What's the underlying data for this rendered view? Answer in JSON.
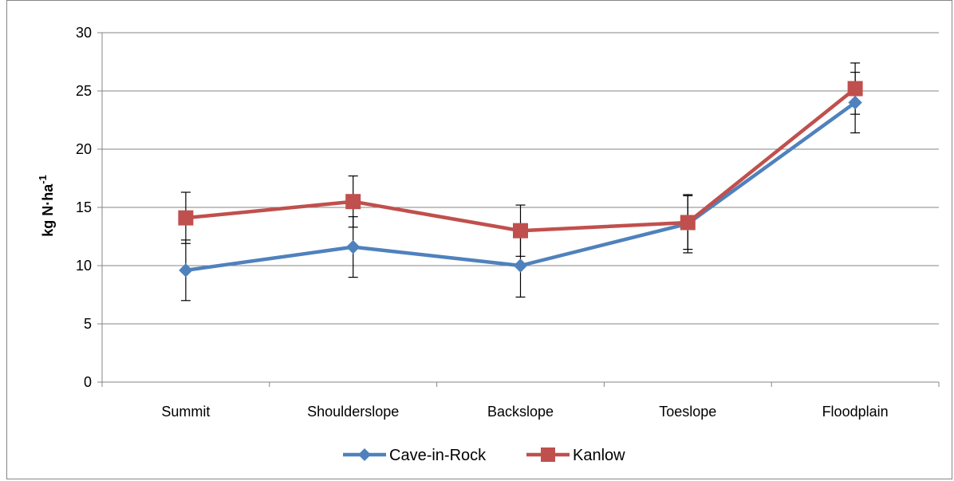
{
  "chart_data": {
    "type": "line",
    "title": "",
    "xlabel": "",
    "ylabel": "kg N·ha",
    "ylabel_superscript": "-1",
    "categories": [
      "Summit",
      "Shoulderslope",
      "Backslope",
      "Toeslope",
      "Floodplain"
    ],
    "ylim": [
      0,
      30
    ],
    "yticks": [
      0,
      5,
      10,
      15,
      20,
      25,
      30
    ],
    "grid": true,
    "legend_position": "bottom",
    "series": [
      {
        "name": "Cave-in-Rock",
        "color": "#4F81BD",
        "marker": "diamond",
        "values": [
          9.6,
          11.6,
          10.0,
          13.6,
          24.0
        ],
        "error": [
          2.6,
          2.6,
          2.7,
          2.5,
          2.6
        ]
      },
      {
        "name": "Kanlow",
        "color": "#C0504D",
        "marker": "square",
        "values": [
          14.1,
          15.5,
          13.0,
          13.7,
          25.2
        ],
        "error": [
          2.2,
          2.2,
          2.2,
          2.3,
          2.2
        ]
      }
    ]
  }
}
